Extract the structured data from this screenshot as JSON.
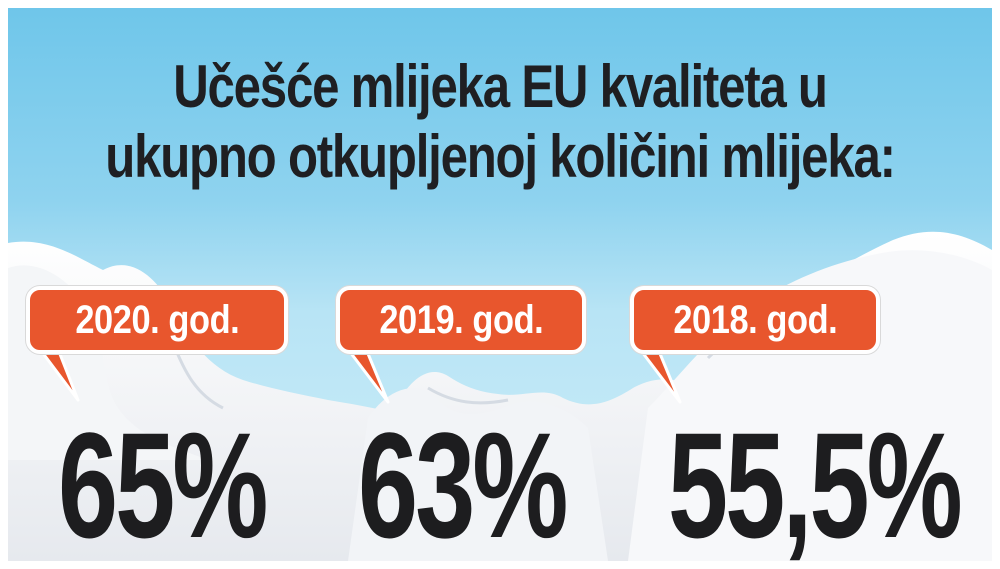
{
  "title": {
    "line1": "Učešće mlijeka EU kvaliteta u",
    "line2": "ukupno otkupljenoj količini mlijeka:"
  },
  "stats": [
    {
      "year": "2020. god.",
      "value": "65%"
    },
    {
      "year": "2019. god.",
      "value": "63%"
    },
    {
      "year": "2018. god.",
      "value": "55,5%"
    }
  ],
  "colors": {
    "sky": "#8fd3ef",
    "tag": "#e8562d",
    "text": "#1f1f22",
    "milk": "#ffffff"
  }
}
